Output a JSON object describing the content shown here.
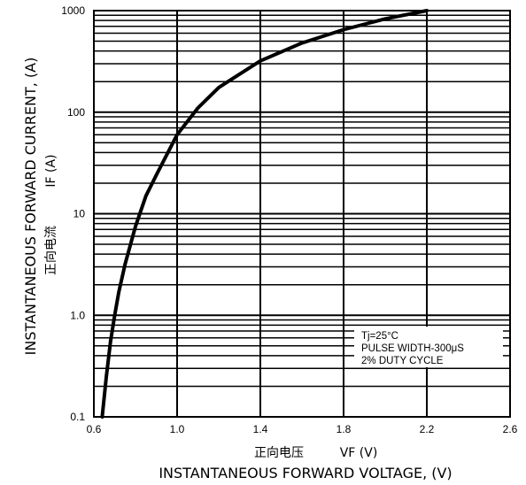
{
  "chart_data": {
    "type": "line",
    "x_scale": "linear",
    "y_scale": "log",
    "xlim": [
      0.6,
      2.6
    ],
    "ylim": [
      0.1,
      1000
    ],
    "x_ticks": [
      "0.6",
      "1.0",
      "1.4",
      "1.8",
      "2.2",
      "2.6"
    ],
    "y_ticks": [
      "0.1",
      "1.0",
      "10",
      "100",
      "1000"
    ],
    "xlabel_cn": "正向电压",
    "xlabel_symbol": "VF (V)",
    "xlabel": "INSTANTANEOUS FORWARD VOLTAGE, (V)",
    "ylabel": "INSTANTANEOUS FORWARD CURRENT, (A)",
    "ylabel_cn": "正向电流",
    "ylabel_symbol": "IF (A)",
    "annotations": [
      "Tj=25°C",
      "PULSE WIDTH-300μS",
      "2% DUTY CYCLE"
    ],
    "grid": true,
    "series": [
      {
        "x": [
          0.64,
          0.66,
          0.68,
          0.7,
          0.72,
          0.75,
          0.8,
          0.85,
          0.9,
          1.0,
          1.1,
          1.2,
          1.4,
          1.6,
          1.8,
          2.0,
          2.2
        ],
        "y": [
          0.1,
          0.25,
          0.55,
          1.0,
          1.7,
          3.2,
          7.5,
          15,
          24,
          60,
          110,
          175,
          320,
          480,
          650,
          830,
          1000
        ]
      }
    ]
  }
}
